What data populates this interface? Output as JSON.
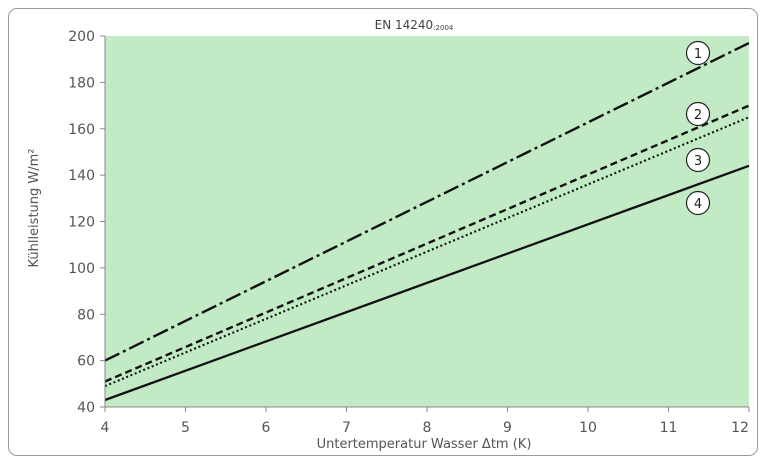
{
  "chart_data": {
    "type": "line",
    "title": "EN 14240",
    "title_suffix": ":2004",
    "xlabel": "Untertemperatur Wasser Δtm (K)",
    "ylabel": "Kühlleistung W/m²",
    "xlim": [
      4,
      12
    ],
    "ylim": [
      40,
      200
    ],
    "x_ticks": [
      4,
      5,
      6,
      7,
      8,
      9,
      10,
      11,
      12
    ],
    "y_ticks": [
      40,
      60,
      80,
      100,
      120,
      140,
      160,
      180,
      200
    ],
    "grid": false,
    "legend": "none",
    "colors": {
      "plot_background": "#c2eac4",
      "line": "#111111",
      "axis": "#888888"
    },
    "series": [
      {
        "marker": "1",
        "style": "dash-dot",
        "x": [
          4,
          12
        ],
        "y": [
          60,
          197
        ]
      },
      {
        "marker": "2",
        "style": "dashed",
        "x": [
          4,
          12
        ],
        "y": [
          51,
          170
        ]
      },
      {
        "marker": "3",
        "style": "dotted",
        "x": [
          4,
          12
        ],
        "y": [
          49,
          165
        ]
      },
      {
        "marker": "4",
        "style": "solid",
        "x": [
          4,
          12
        ],
        "y": [
          43,
          144
        ]
      }
    ]
  }
}
